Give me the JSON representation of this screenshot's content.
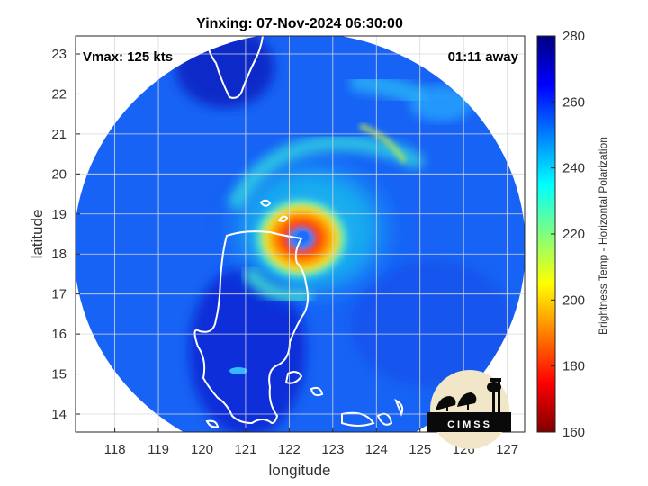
{
  "chart_data": {
    "type": "heatmap",
    "title": "Yinxing: 07-Nov-2024 06:30:00",
    "xlabel": "longitude",
    "ylabel": "latitude",
    "xlim": [
      117.1,
      127.4
    ],
    "ylim": [
      13.55,
      23.45
    ],
    "xticks": [
      118,
      119,
      120,
      121,
      122,
      123,
      124,
      125,
      126,
      127
    ],
    "yticks": [
      14,
      15,
      16,
      17,
      18,
      19,
      20,
      21,
      22,
      23
    ],
    "grid": true,
    "annotations": {
      "vmax": "Vmax: 125 kts",
      "away": "01:11 away"
    },
    "storm_center": {
      "lon": 122.35,
      "lat": 18.4
    },
    "colorbar": {
      "label": "Brightness Temp - Horizontal Polarization",
      "range": [
        160,
        280
      ],
      "ticks": [
        160,
        180,
        200,
        220,
        240,
        260,
        280
      ],
      "colormap": "jet"
    },
    "logo": "CIMSS"
  },
  "colors": {
    "outside_swath": "#ffffff",
    "coast": "#ffffff",
    "grid": "#d9d9d9"
  }
}
